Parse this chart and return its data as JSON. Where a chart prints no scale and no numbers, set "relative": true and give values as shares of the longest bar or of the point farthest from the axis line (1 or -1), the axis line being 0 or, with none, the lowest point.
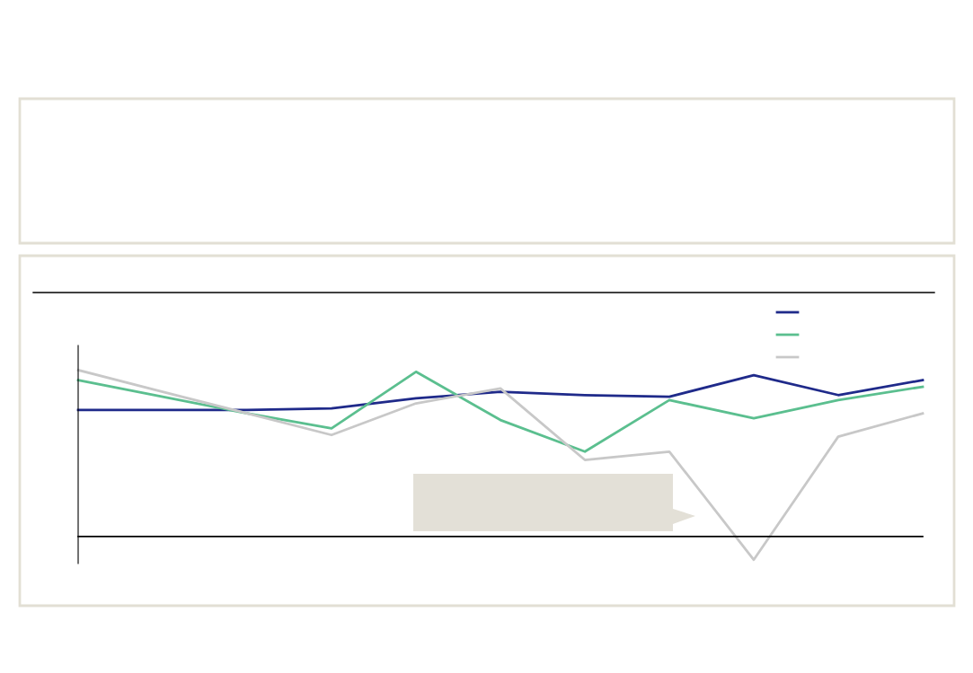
{
  "chart_data": {
    "type": "line",
    "relative": true,
    "categories": [
      null,
      null,
      null,
      null,
      null,
      null,
      null,
      null,
      null,
      null,
      null
    ],
    "series": [
      {
        "color": "#1f2a8a",
        "values": [
          0.76,
          0.76,
          0.76,
          0.77,
          0.83,
          0.87,
          0.85,
          0.84,
          0.97,
          0.85,
          0.94
        ]
      },
      {
        "color": "#5bbf8f",
        "values": [
          0.94,
          0.84,
          0.74,
          0.65,
          0.99,
          0.7,
          0.51,
          0.82,
          0.71,
          0.82,
          0.9
        ]
      },
      {
        "color": "#c8c8c8",
        "values": [
          1.0,
          0.87,
          0.74,
          0.61,
          0.8,
          0.89,
          0.46,
          0.51,
          -0.14,
          0.6,
          0.74
        ]
      }
    ],
    "marker": "none",
    "line_style": "solid"
  }
}
